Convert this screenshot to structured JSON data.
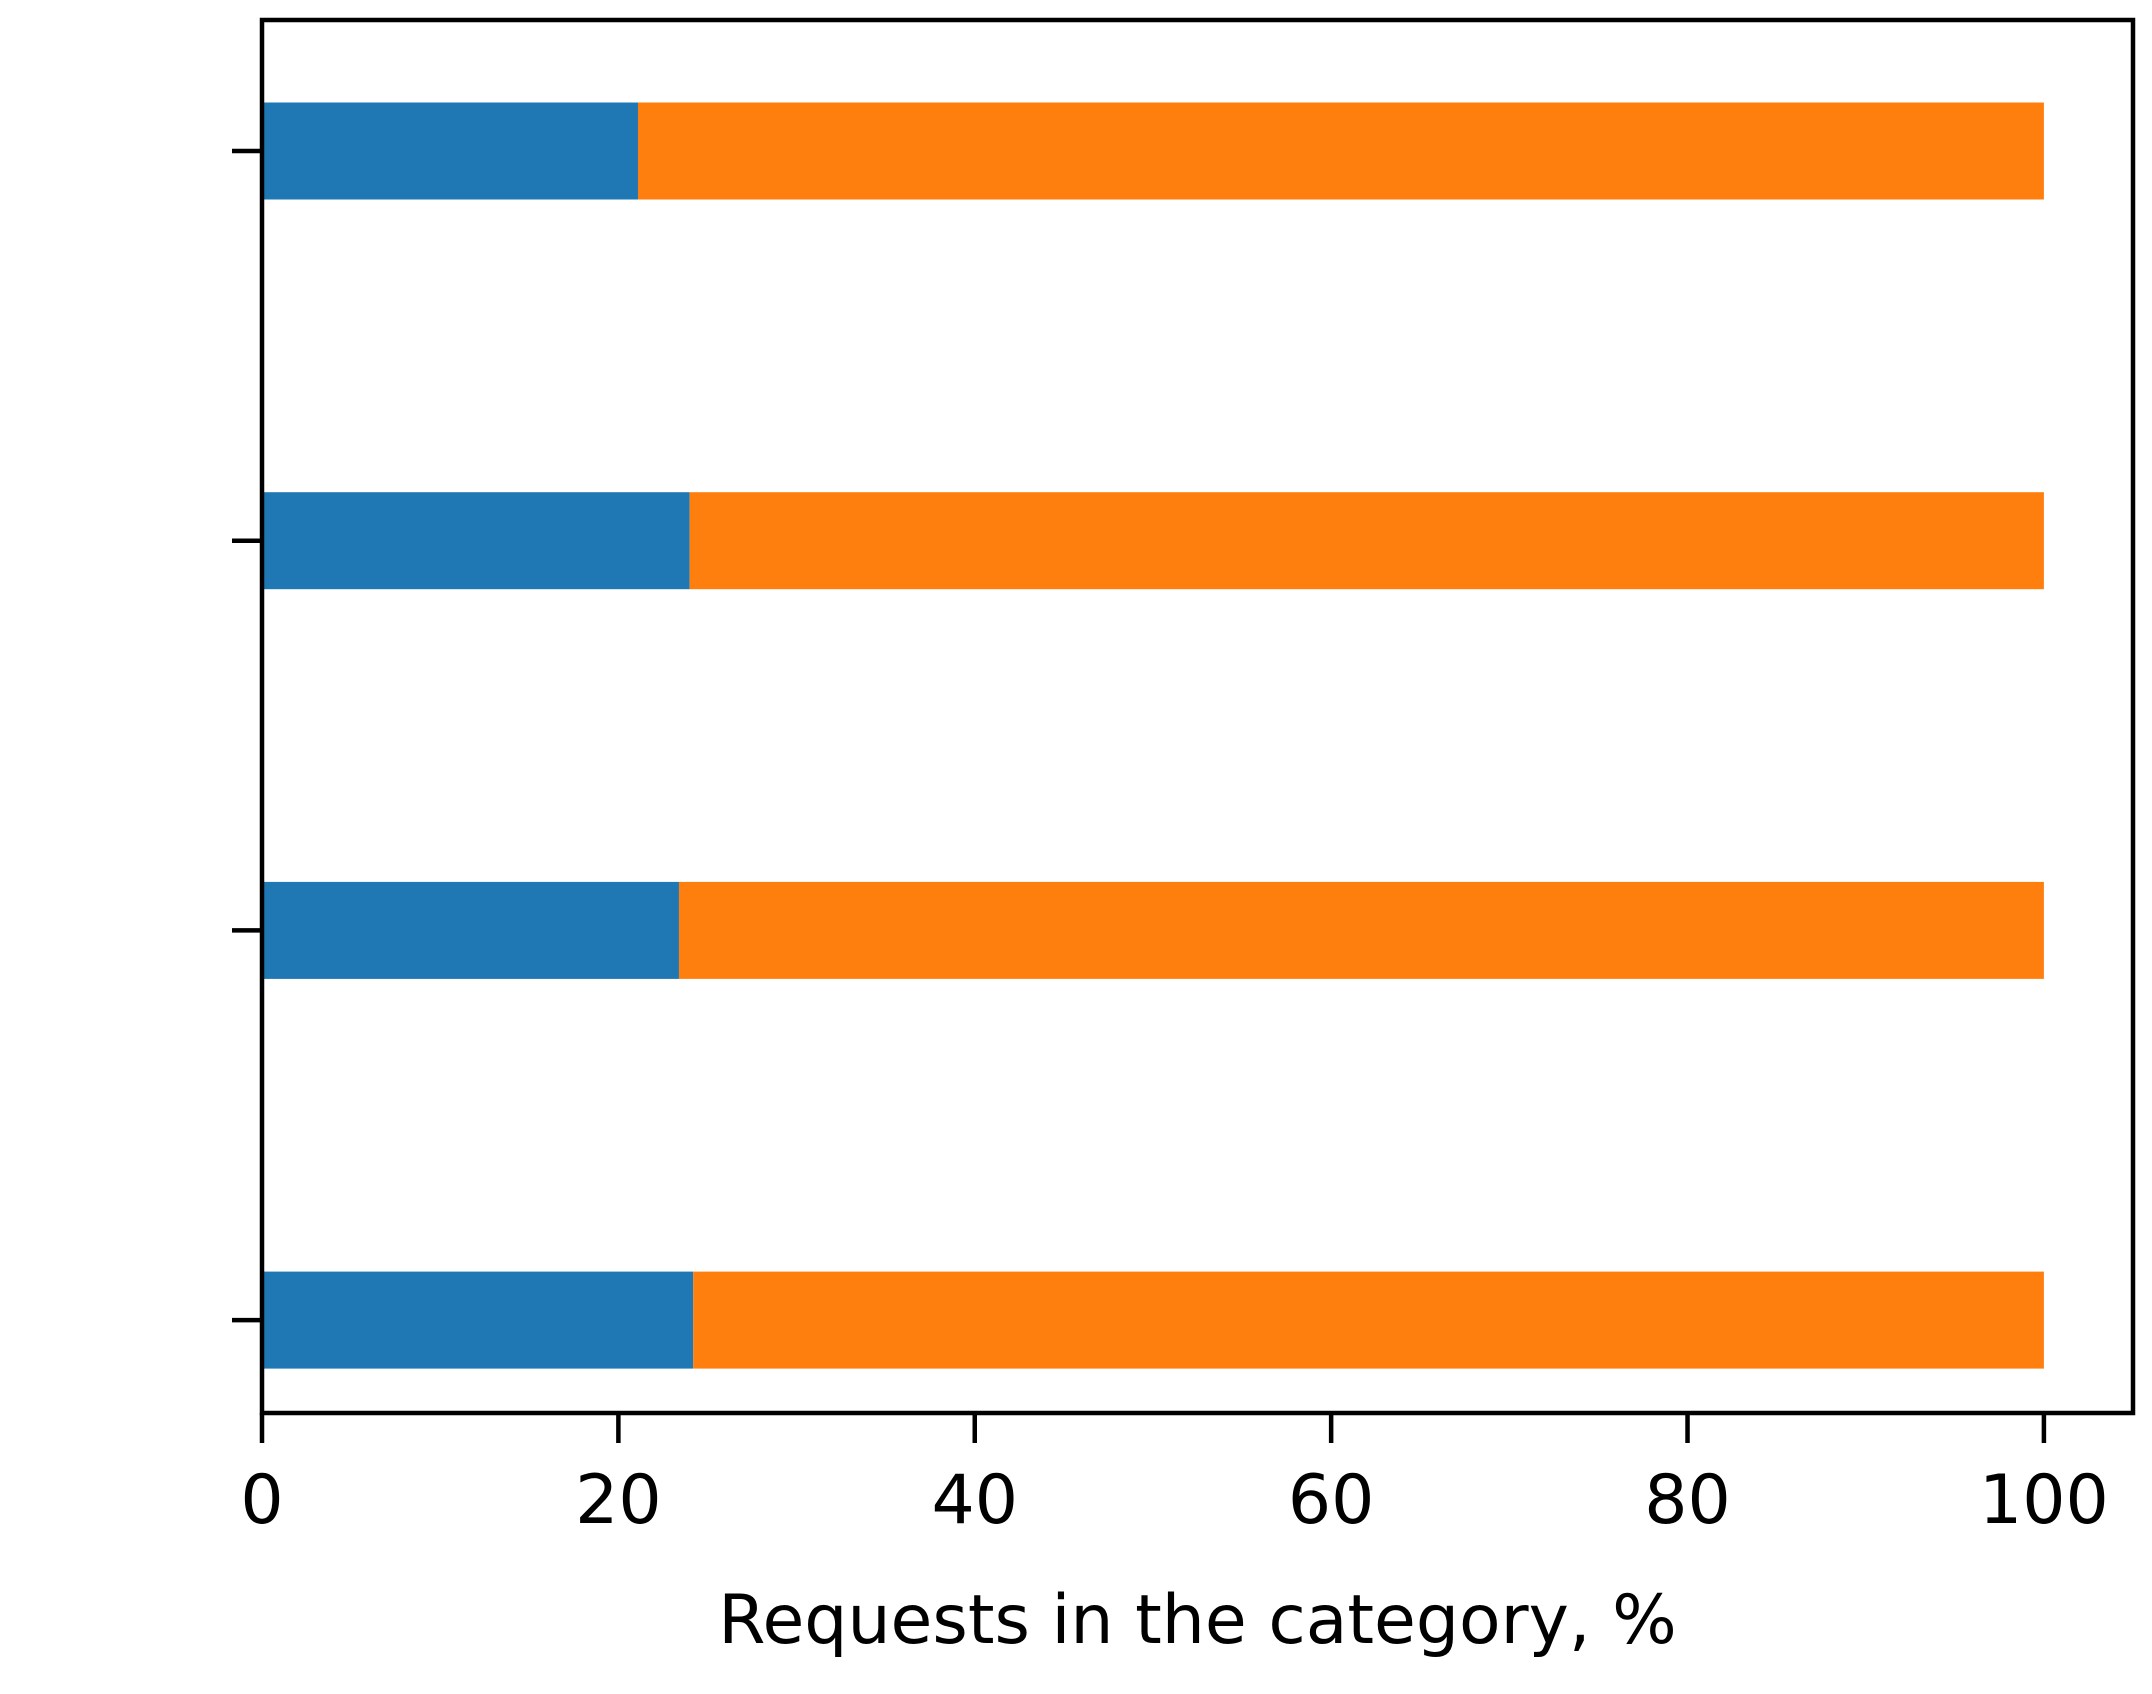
{
  "chart_data": {
    "type": "bar",
    "orientation": "horizontal",
    "stacked": true,
    "title": "",
    "xlabel": "Requests in the category, %",
    "ylabel": "",
    "xlim": [
      0,
      105
    ],
    "xticks": [
      0,
      20,
      40,
      60,
      80,
      100
    ],
    "categories": [
      "",
      "",
      "",
      ""
    ],
    "series": [
      {
        "color": "#1f77b4",
        "values": [
          24.2,
          23.4,
          24.0,
          21.1
        ]
      },
      {
        "color": "#ff7f0e",
        "values": [
          75.8,
          76.6,
          76.0,
          78.9
        ]
      }
    ],
    "grid": false,
    "legend": "none"
  }
}
